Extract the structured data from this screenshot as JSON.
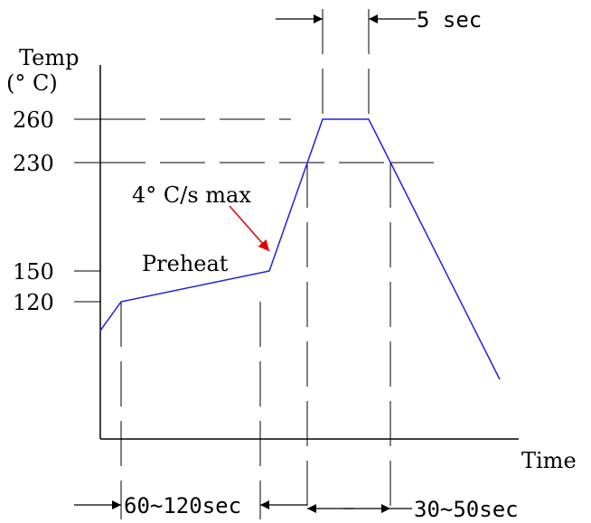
{
  "labels": {
    "temp_axis": "Temp",
    "temp_unit": "(° C)",
    "time_axis": "Time",
    "preheat": "Preheat",
    "ramp_rate": "4° C/s max",
    "peak_duration": "5 sec",
    "preheat_duration": "60~120sec",
    "reflow_duration": "30~50sec"
  },
  "temperature_ticks": [
    "260",
    "230",
    "150",
    "120"
  ],
  "profile": {
    "preheat_low_c": 120,
    "preheat_high_c": 150,
    "reflow_threshold_c": 230,
    "peak_c": 260,
    "max_ramp_rate": "4° C/s max",
    "peak_hold": "5 sec",
    "preheat_time": "60~120sec",
    "time_above_230": "30~50sec"
  },
  "colors": {
    "profile_line": "#2020e0",
    "ramp_arrow": "#e00000",
    "lines": "#000000"
  }
}
